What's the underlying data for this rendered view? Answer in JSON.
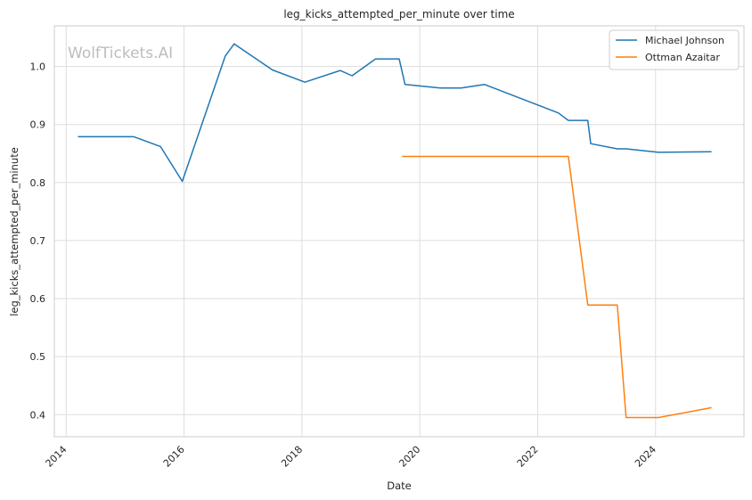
{
  "chart_data": {
    "type": "line",
    "title": "leg_kicks_attempted_per_minute over time",
    "xlabel": "Date",
    "ylabel": "leg_kicks_attempted_per_minute",
    "watermark": "WolfTickets.AI",
    "xlim": [
      2013.8,
      2025.5
    ],
    "ylim": [
      0.362,
      1.07
    ],
    "x_ticks": [
      2014,
      2016,
      2018,
      2020,
      2022,
      2024
    ],
    "x_tick_labels": [
      "2014",
      "2016",
      "2018",
      "2020",
      "2022",
      "2024"
    ],
    "y_ticks": [
      0.4,
      0.5,
      0.6,
      0.7,
      0.8,
      0.9,
      1.0
    ],
    "y_tick_labels": [
      "0.4",
      "0.5",
      "0.6",
      "0.7",
      "0.8",
      "0.9",
      "1.0"
    ],
    "grid": true,
    "legend_position": "top-right",
    "series": [
      {
        "name": "Michael Johnson",
        "color": "#1f77b4",
        "x": [
          2014.2,
          2015.15,
          2015.6,
          2015.97,
          2016.7,
          2016.85,
          2017.5,
          2018.05,
          2018.65,
          2018.85,
          2019.25,
          2019.65,
          2019.75,
          2020.35,
          2020.7,
          2021.1,
          2022.35,
          2022.52,
          2022.85,
          2022.9,
          2023.35,
          2023.5,
          2024.05,
          2024.95
        ],
        "y": [
          0.879,
          0.879,
          0.862,
          0.802,
          1.018,
          1.039,
          0.994,
          0.973,
          0.993,
          0.984,
          1.013,
          1.013,
          0.969,
          0.963,
          0.963,
          0.969,
          0.92,
          0.907,
          0.907,
          0.867,
          0.858,
          0.858,
          0.852,
          0.853
        ]
      },
      {
        "name": "Ottman Azaitar",
        "color": "#ff7f0e",
        "x": [
          2019.7,
          2022.52,
          2022.85,
          2023.35,
          2023.5,
          2024.05,
          2024.95
        ],
        "y": [
          0.845,
          0.845,
          0.589,
          0.589,
          0.395,
          0.395,
          0.412
        ]
      }
    ]
  }
}
